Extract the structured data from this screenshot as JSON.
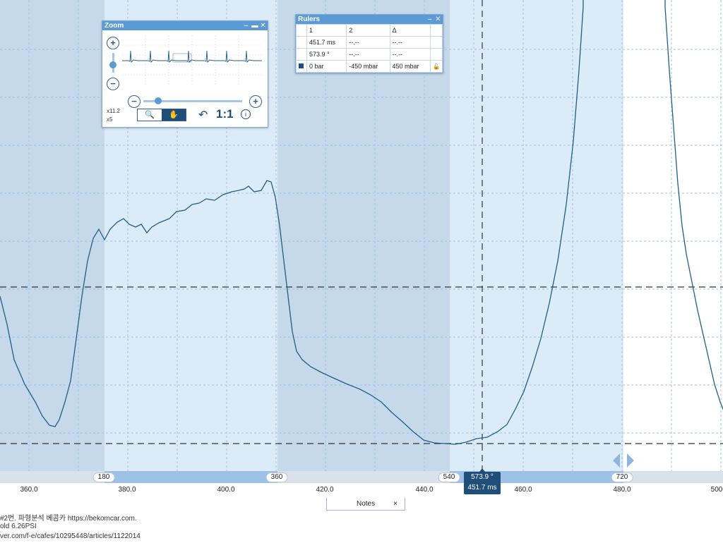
{
  "zoom_window": {
    "title": "Zoom",
    "zoom_in": "+",
    "zoom_out": "−",
    "hzoom_out": "−",
    "hzoom_in": "+",
    "zoom_x": "x11.2",
    "zoom_y": "x5",
    "one_to_one": "1:1",
    "info": "i"
  },
  "rulers": {
    "title": "Rulers",
    "headers": [
      "1",
      "2",
      "Δ"
    ],
    "time_row": [
      "451.7 ms",
      "--.--",
      "--.--"
    ],
    "angle_row": [
      "573.9 °",
      "--.--",
      "--.--"
    ],
    "value_row": [
      "0 bar",
      "-450 mbar",
      "450 mbar"
    ]
  },
  "axis": {
    "time_ticks": [
      "360.0",
      "380.0",
      "400.0",
      "420.0",
      "440.0",
      "460.0",
      "480.0",
      "500"
    ],
    "phase_labels": [
      "180",
      "360",
      "540",
      "720"
    ]
  },
  "cursor": {
    "angle": "573.9 °",
    "time": "451.7 ms"
  },
  "notes": {
    "label": "Notes",
    "close": "×"
  },
  "caption_lines": [
    "#2번. 파형분석  베콤카 https://bekomcar.com.",
    "old 6.26PSI",
    "ver.com/f-e/cafes/10295448/articles/1122014"
  ],
  "colors": {
    "trace": "#1f5f86",
    "accent": "#1f4e79",
    "panel_light": "#dcebf8",
    "panel_dark": "#c6d9ea"
  }
}
